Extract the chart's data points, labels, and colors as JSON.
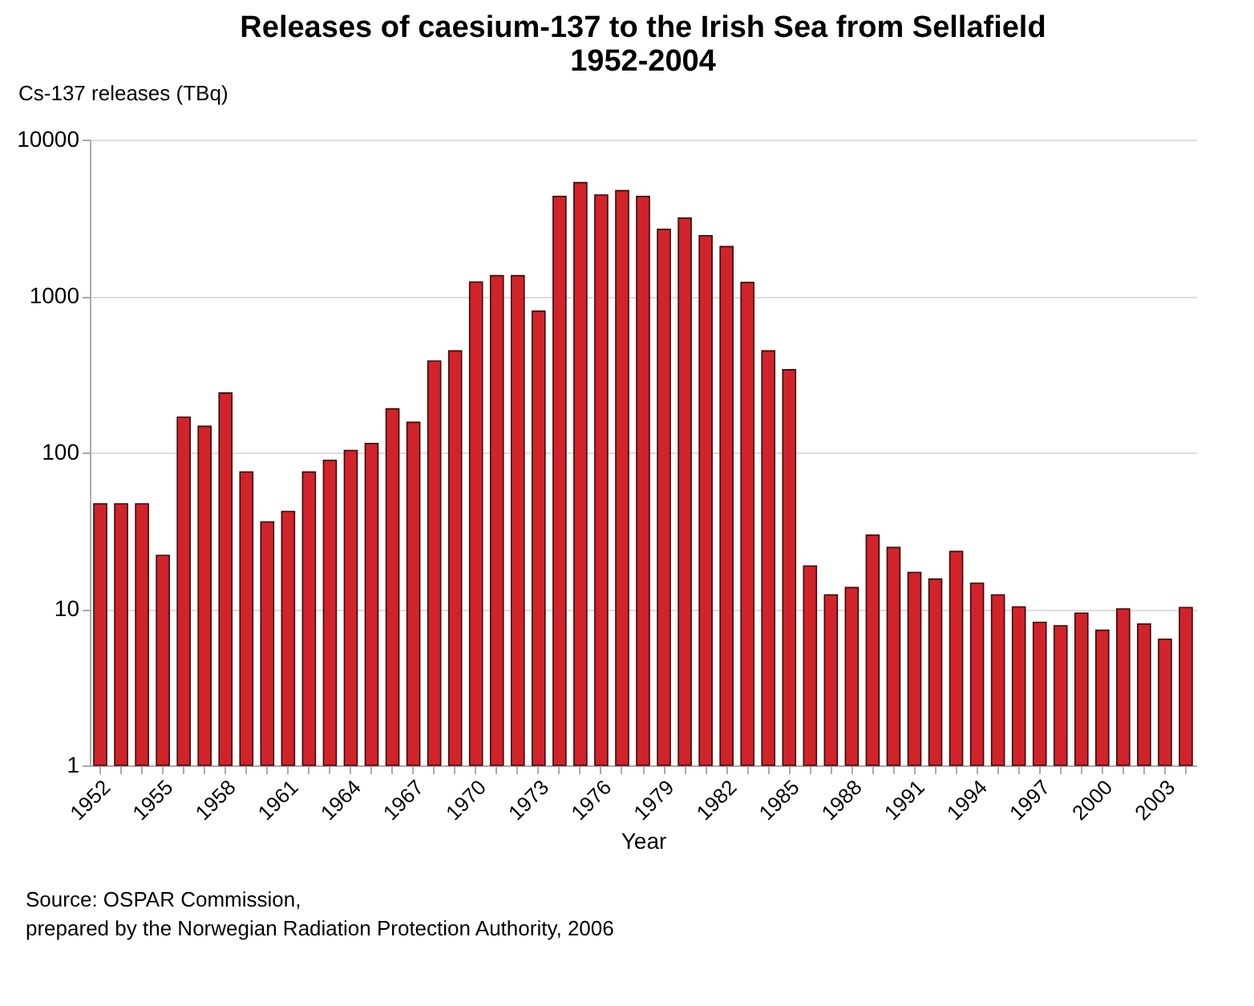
{
  "chart_data": {
    "type": "bar",
    "title": "Releases of caesium-137 to the Irish Sea from Sellafield\n1952-2004",
    "xlabel": "Year",
    "ylabel": "Cs-137 releases (TBq)",
    "categories": [
      "1952",
      null,
      null,
      "1955",
      null,
      null,
      "1958",
      null,
      null,
      "1961",
      null,
      null,
      "1964",
      null,
      null,
      "1967",
      null,
      null,
      "1970",
      null,
      null,
      "1973",
      null,
      null,
      "1976",
      null,
      null,
      "1979",
      null,
      null,
      "1982",
      null,
      null,
      "1985",
      null,
      null,
      "1988",
      null,
      null,
      "1991",
      null,
      null,
      "1994",
      null,
      null,
      "1997",
      null,
      null,
      "2000",
      null,
      null,
      "2003",
      null
    ],
    "values": [
      47,
      47,
      47,
      22,
      168,
      147,
      240,
      75,
      36,
      42,
      75,
      89,
      103,
      114,
      190,
      156,
      384,
      446,
      1230,
      1350,
      1350,
      800,
      4330,
      5310,
      4430,
      4720,
      4330,
      2670,
      3150,
      2430,
      2070,
      1220,
      446,
      338,
      18.8,
      12.3,
      13.7,
      29.6,
      24.7,
      17.1,
      15.5,
      23.3,
      14.6,
      12.3,
      10.3,
      8.2,
      7.8,
      9.4,
      7.3,
      10,
      8.0,
      6.4,
      10.2
    ],
    "color": "#d1232a",
    "log": true,
    "ylim": [
      1,
      10000
    ],
    "yticks": [
      1,
      10,
      100,
      1000,
      10000
    ],
    "grid": "y",
    "annotations": [
      "Source: OSPAR Commission,",
      "prepared by the Norwegian Radiation Protection Authority, 2006"
    ]
  }
}
